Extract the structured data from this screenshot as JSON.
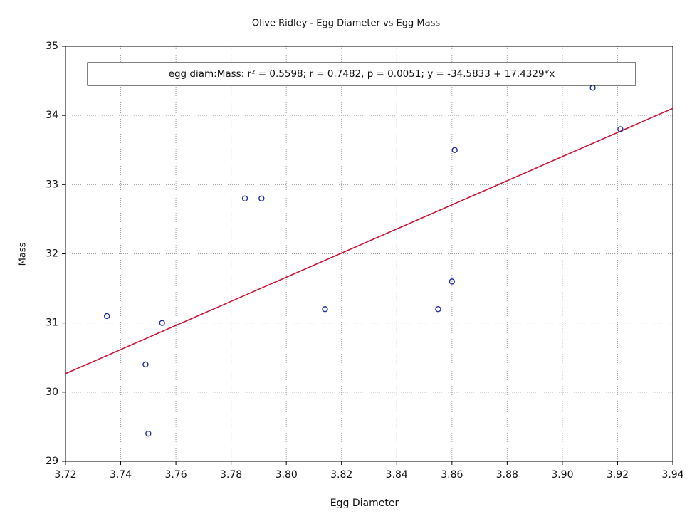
{
  "chart_data": {
    "type": "scatter",
    "title": "Olive Ridley - Egg Diameter vs Egg Mass",
    "x_label": "Egg Diameter",
    "y_label": "Mass",
    "annotation": "egg diam:Mass:  r² = 0.5598;  r = 0.7482, p = 0.0051;  y = -34.5833 + 17.4329*x",
    "fit_line": {
      "intercept": -34.5833,
      "slope": 17.4329,
      "color": "#cc1136"
    },
    "series": [
      {
        "color": "#1f2f9a",
        "x": [
          3.735,
          3.749,
          3.75,
          3.755,
          3.785,
          3.791,
          3.814,
          3.855,
          3.86,
          3.861,
          3.911,
          3.921
        ],
        "values": [
          31.1,
          30.4,
          29.4,
          31.0,
          32.8,
          32.8,
          31.2,
          31.2,
          31.6,
          33.5,
          34.4,
          33.8
        ]
      }
    ],
    "xlim": [
      3.72,
      3.94
    ],
    "xticks": [
      3.72,
      3.74,
      3.76,
      3.78,
      {
        "value": 3.8,
        "label": "3.80"
      },
      3.82,
      3.84,
      3.86,
      3.88,
      {
        "value": 3.9,
        "label": "3.90"
      },
      3.92,
      3.94
    ],
    "ylim": [
      29,
      35
    ],
    "yticks": [
      29,
      30,
      31,
      32,
      33,
      34,
      35
    ],
    "grid": true
  }
}
